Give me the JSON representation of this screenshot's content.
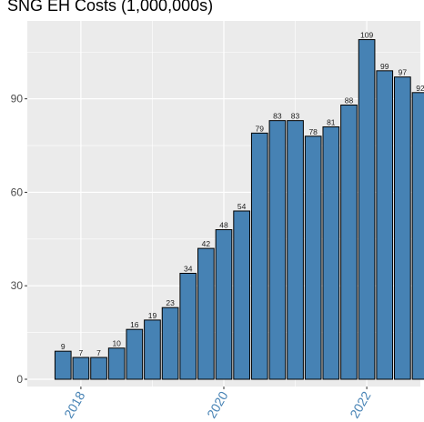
{
  "chart_data": {
    "type": "bar",
    "title": "SNG EH Costs (1,000,000s)",
    "xlabel": "",
    "ylabel": "",
    "ylim": [
      0,
      115
    ],
    "y_ticks": [
      0,
      30,
      60,
      90
    ],
    "x_range": [
      2017.25,
      2022.75
    ],
    "x_ticks": [
      {
        "value": 2018,
        "label": "2018"
      },
      {
        "value": 2020,
        "label": "2020"
      },
      {
        "value": 2022,
        "label": "2022"
      }
    ],
    "grid": true,
    "bar_color": "#4682b4",
    "x_tick_color": "#4682b4",
    "x": [
      "2017-Q4",
      "2018-Q1",
      "2018-Q2",
      "2018-Q3",
      "2018-Q4",
      "2019-Q1",
      "2019-Q2",
      "2019-Q3",
      "2019-Q4",
      "2020-Q1",
      "2020-Q2",
      "2020-Q3",
      "2020-Q4",
      "2021-Q1",
      "2021-Q2",
      "2021-Q3",
      "2021-Q4",
      "2022-Q1",
      "2022-Q2",
      "2022-Q3",
      "2022-Q4"
    ],
    "values": [
      9,
      7,
      7,
      10,
      16,
      19,
      23,
      34,
      42,
      48,
      54,
      79,
      83,
      83,
      78,
      81,
      88,
      109,
      99,
      97,
      92
    ]
  }
}
